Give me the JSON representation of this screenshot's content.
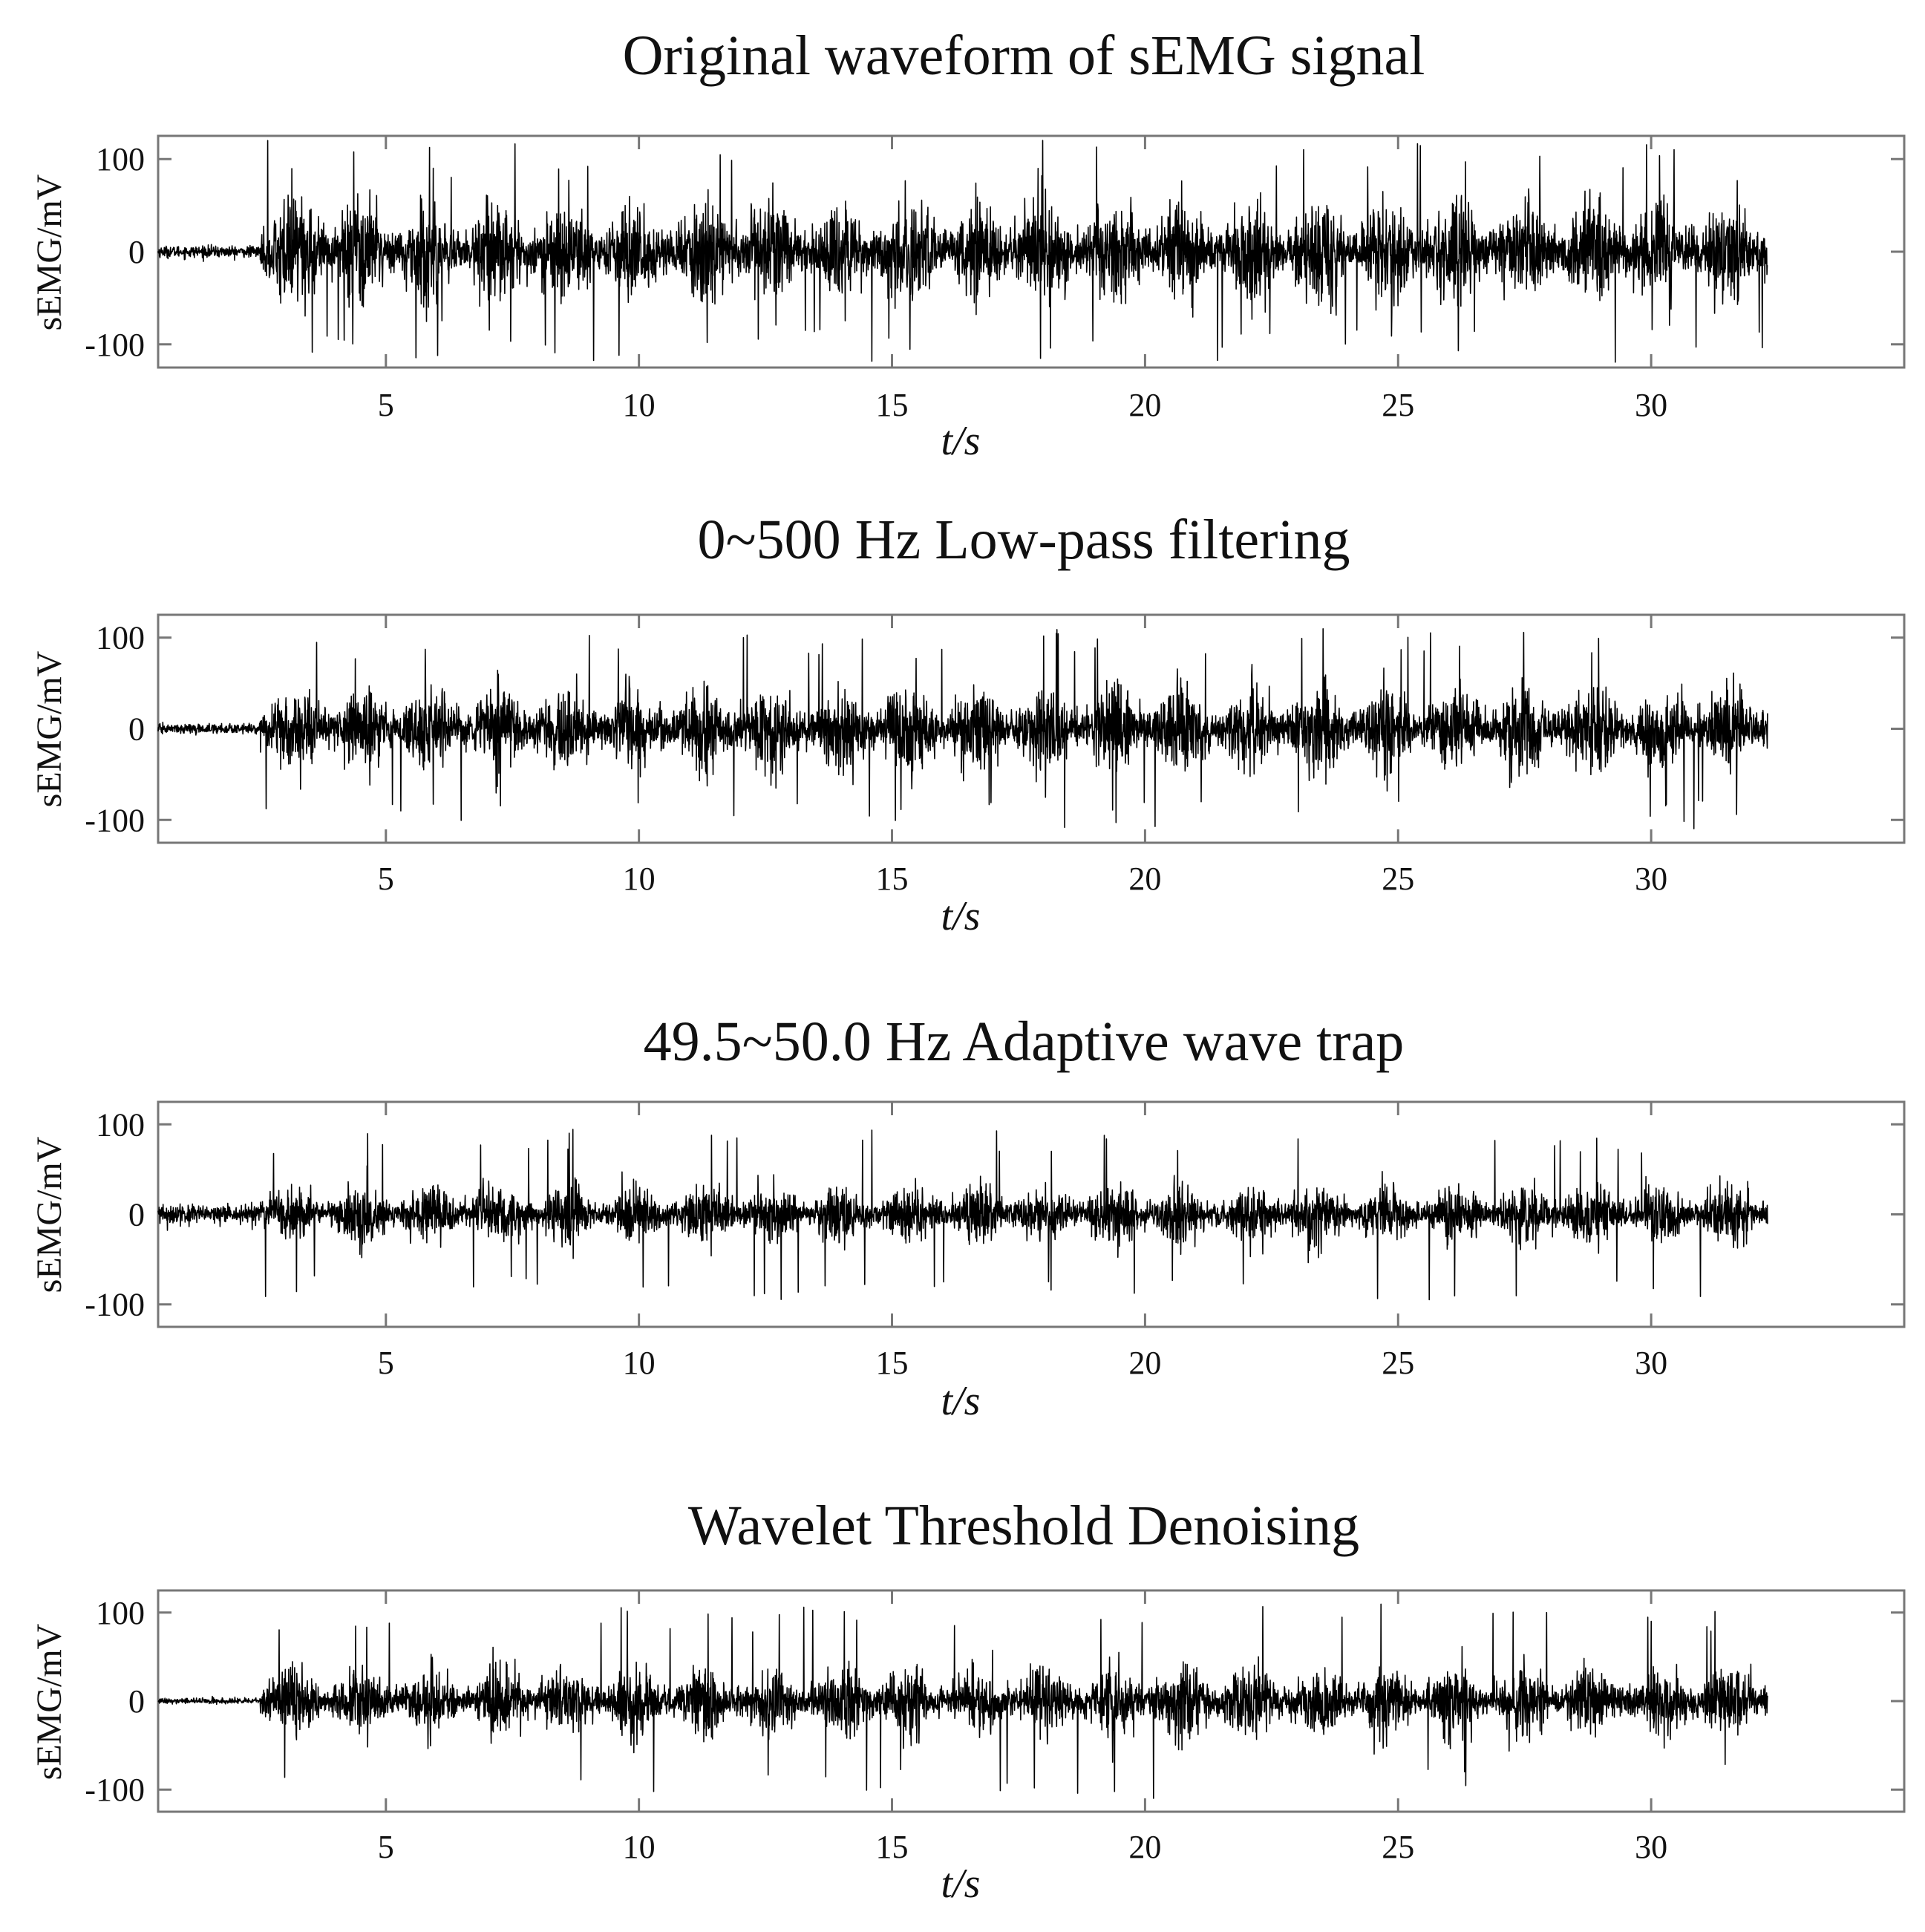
{
  "figure": {
    "background": "#ffffff",
    "signal_color": "#000000",
    "frame_color": "#777777"
  },
  "chart_data": [
    {
      "type": "line",
      "title": "Original waveform of sEMG signal",
      "xlabel": "t/s",
      "ylabel": "sEMG/mV",
      "xlim": [
        0.5,
        35
      ],
      "ylim": [
        -125,
        125
      ],
      "xticks": [
        5,
        10,
        15,
        20,
        25,
        30
      ],
      "yticks": [
        100,
        0,
        -100
      ],
      "grid": false,
      "signal": {
        "start": 0.5,
        "end": 32.3,
        "onset": 2.5,
        "baseline_noise": 3,
        "burst_amplitude": 55,
        "peak_amplitude": 120,
        "burst_period": 1.35
      }
    },
    {
      "type": "line",
      "title": "0~500 Hz Low-pass filtering",
      "xlabel": "t/s",
      "ylabel": "sEMG/mV",
      "xlim": [
        0.5,
        35
      ],
      "ylim": [
        -125,
        125
      ],
      "xticks": [
        5,
        10,
        15,
        20,
        25,
        30
      ],
      "yticks": [
        100,
        0,
        -100
      ],
      "grid": false,
      "signal": {
        "start": 0.5,
        "end": 32.3,
        "onset": 2.5,
        "baseline_noise": 2.5,
        "burst_amplitude": 45,
        "peak_amplitude": 110,
        "burst_period": 1.35
      }
    },
    {
      "type": "line",
      "title": "49.5~50.0 Hz Adaptive wave trap",
      "xlabel": "t/s",
      "ylabel": "sEMG/mV",
      "xlim": [
        0.5,
        35
      ],
      "ylim": [
        -125,
        125
      ],
      "xticks": [
        5,
        10,
        15,
        20,
        25,
        30
      ],
      "yticks": [
        100,
        0,
        -100
      ],
      "grid": false,
      "signal": {
        "start": 0.5,
        "end": 32.3,
        "onset": 2.5,
        "baseline_noise": 5,
        "burst_amplitude": 32,
        "peak_amplitude": 95,
        "burst_period": 1.35
      }
    },
    {
      "type": "line",
      "title": "Wavelet Threshold Denoising",
      "xlabel": "t/s",
      "ylabel": "sEMG/mV",
      "xlim": [
        0.5,
        35
      ],
      "ylim": [
        -125,
        125
      ],
      "xticks": [
        5,
        10,
        15,
        20,
        25,
        30
      ],
      "yticks": [
        100,
        0,
        -100
      ],
      "grid": false,
      "signal": {
        "start": 0.5,
        "end": 32.3,
        "onset": 2.5,
        "baseline_noise": 1.5,
        "burst_amplitude": 38,
        "peak_amplitude": 110,
        "burst_period": 1.35
      }
    }
  ]
}
